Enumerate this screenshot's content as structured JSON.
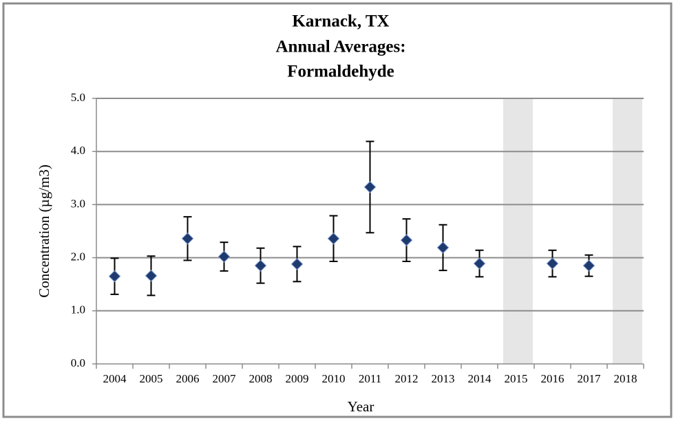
{
  "chart_data": {
    "type": "errorbar",
    "title": [
      "Karnack, TX",
      "Annual Averages:",
      "Formaldehyde"
    ],
    "x_label": "Year",
    "y_label": "Concentration (µg/m3)",
    "categories": [
      "2004",
      "2005",
      "2006",
      "2007",
      "2008",
      "2009",
      "2010",
      "2011",
      "2012",
      "2013",
      "2014",
      "2015",
      "2016",
      "2017",
      "2018"
    ],
    "values": [
      1.65,
      1.66,
      2.36,
      2.02,
      1.85,
      1.88,
      2.36,
      3.33,
      2.33,
      2.19,
      1.89,
      null,
      1.89,
      1.85,
      null
    ],
    "errors": [
      0.34,
      0.37,
      0.41,
      0.27,
      0.33,
      0.33,
      0.43,
      0.86,
      0.4,
      0.43,
      0.25,
      null,
      0.25,
      0.2,
      null
    ],
    "shaded": [
      false,
      false,
      false,
      false,
      false,
      false,
      false,
      false,
      false,
      false,
      false,
      true,
      false,
      false,
      true
    ],
    "color": "#1f3a6e",
    "shade_color": "#e6e6e6",
    "ylim": [
      0,
      5
    ],
    "yticks": [
      {
        "value": 0,
        "label": "0.0"
      },
      {
        "value": 1,
        "label": "1.0"
      },
      {
        "value": 2,
        "label": "2.0"
      },
      {
        "value": 3,
        "label": "3.0"
      },
      {
        "value": 4,
        "label": "4.0"
      },
      {
        "value": 5,
        "label": "5.0"
      }
    ],
    "grid": true
  }
}
